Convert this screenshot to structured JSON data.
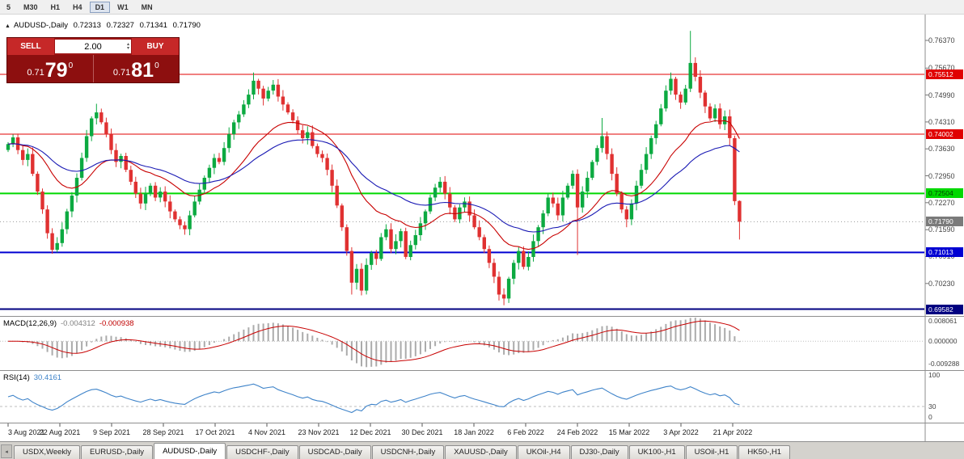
{
  "toolbar": {
    "timeframes": [
      "5",
      "M30",
      "H1",
      "H4",
      "D1",
      "W1",
      "MN"
    ],
    "active_timeframe": "D1"
  },
  "header": {
    "symbol": "AUDUSD-,Daily",
    "open": "0.72313",
    "high": "0.72327",
    "low": "0.71341",
    "close": "0.71790"
  },
  "trade_panel": {
    "sell_label": "SELL",
    "buy_label": "BUY",
    "volume": "2.00",
    "bid": {
      "base": "0.71",
      "big": "79",
      "sup": "0"
    },
    "ask": {
      "base": "0.71",
      "big": "81",
      "sup": "0"
    }
  },
  "indicators": {
    "macd": {
      "title": "MACD(12,26,9)",
      "main_value": "-0.004312",
      "signal_value": "-0.000938",
      "axis": [
        "0.008061",
        "0.000000",
        "-0.009288"
      ],
      "params": {
        "fast": 12,
        "slow": 26,
        "signal": 9
      }
    },
    "rsi": {
      "title": "RSI(14)",
      "value": "30.4161",
      "axis": [
        "100",
        "30",
        "0"
      ],
      "level": 30,
      "period": 14
    }
  },
  "price_axis": {
    "ticks": [
      "0.76370",
      "0.75670",
      "0.74990",
      "0.74310",
      "0.73630",
      "0.72950",
      "0.72270",
      "0.71590",
      "0.70910",
      "0.70230"
    ]
  },
  "date_axis": {
    "labels": [
      "3 Aug 2021",
      "22 Aug 2021",
      "9 Sep 2021",
      "28 Sep 2021",
      "17 Oct 2021",
      "4 Nov 2021",
      "23 Nov 2021",
      "12 Dec 2021",
      "30 Dec 2021",
      "18 Jan 2022",
      "6 Feb 2022",
      "24 Feb 2022",
      "15 Mar 2022",
      "3 Apr 2022",
      "21 Apr 2022"
    ],
    "start_label": "3 Aug 2021",
    "end_label": "21 Apr 2022"
  },
  "tabs": {
    "items": [
      "USDX,Weekly",
      "EURUSD-,Daily",
      "AUDUSD-,Daily",
      "USDCHF-,Daily",
      "USDCAD-,Daily",
      "USDCNH-,Daily",
      "XAUUSD-,Daily",
      "UKOil-,H4",
      "DJ30-,Daily",
      "UK100-,H1",
      "USOil-,H1",
      "HK50-,H1"
    ],
    "active": "AUDUSD-,Daily"
  },
  "colors": {
    "candle_up": "#0caa41",
    "candle_down": "#e03131",
    "ma_fast": "#c80000",
    "ma_slow": "#1a1ab4",
    "macd_hist": "#ababab",
    "macd_signal": "#c80000",
    "rsi_line": "#3e83c9",
    "level_red": "#e00000",
    "level_green": "#00d800",
    "level_blue": "#0000d2",
    "level_navy": "#000080",
    "bid_line": "#9a9a9a"
  },
  "chart_data": {
    "type": "candlestick",
    "symbol": "AUDUSD-",
    "period": "Daily",
    "current_bid": 0.7179,
    "current_ask": 0.7181,
    "levels": [
      {
        "value": 0.75512,
        "text": "0.75512",
        "color": "#e00000",
        "width": 1,
        "dash": "",
        "badge_bg": "#e00000",
        "badge_fg": "#ffffff"
      },
      {
        "value": 0.74002,
        "text": "0.74002",
        "color": "#e00000",
        "width": 1,
        "dash": "",
        "badge_bg": "#e00000",
        "badge_fg": "#ffffff"
      },
      {
        "value": 0.72504,
        "text": "0.72504",
        "color": "#00d800",
        "width": 2,
        "dash": "",
        "badge_bg": "#00d800",
        "badge_fg": "#003b00"
      },
      {
        "value": 0.71013,
        "text": "0.71013",
        "color": "#0000d2",
        "width": 2,
        "dash": "",
        "badge_bg": "#0000d2",
        "badge_fg": "#ffffff"
      },
      {
        "value": 0.69582,
        "text": "0.69582",
        "color": "#000080",
        "width": 2,
        "dash": "",
        "badge_bg": "#000080",
        "badge_fg": "#ffffff"
      },
      {
        "value": 0.7179,
        "text": "0.71790",
        "color": "#9a9a9a",
        "width": 1,
        "dash": "1,3",
        "badge_bg": "#7a7a7a",
        "badge_fg": "#ffffff"
      }
    ],
    "candles": {
      "first_open": 0.736,
      "closes": [
        0.7375,
        0.7392,
        0.736,
        0.7335,
        0.735,
        0.73,
        0.7255,
        0.721,
        0.715,
        0.7108,
        0.7125,
        0.716,
        0.7205,
        0.7245,
        0.729,
        0.734,
        0.7395,
        0.744,
        0.7455,
        0.743,
        0.74,
        0.736,
        0.733,
        0.7345,
        0.731,
        0.728,
        0.725,
        0.7225,
        0.725,
        0.727,
        0.724,
        0.7255,
        0.723,
        0.7205,
        0.7185,
        0.717,
        0.716,
        0.7195,
        0.723,
        0.726,
        0.729,
        0.7315,
        0.734,
        0.733,
        0.7365,
        0.74,
        0.743,
        0.745,
        0.7475,
        0.75,
        0.7535,
        0.7515,
        0.749,
        0.751,
        0.7525,
        0.7495,
        0.7475,
        0.7455,
        0.7435,
        0.741,
        0.739,
        0.7405,
        0.737,
        0.735,
        0.734,
        0.731,
        0.727,
        0.722,
        0.7165,
        0.7105,
        0.7025,
        0.706,
        0.7005,
        0.707,
        0.71,
        0.7085,
        0.714,
        0.716,
        0.711,
        0.713,
        0.7155,
        0.709,
        0.712,
        0.7145,
        0.7175,
        0.7205,
        0.724,
        0.7265,
        0.728,
        0.725,
        0.7215,
        0.7185,
        0.7215,
        0.723,
        0.7195,
        0.7165,
        0.714,
        0.711,
        0.7075,
        0.704,
        0.6995,
        0.6985,
        0.7035,
        0.7075,
        0.7105,
        0.7065,
        0.709,
        0.713,
        0.7165,
        0.72,
        0.724,
        0.7225,
        0.7195,
        0.724,
        0.727,
        0.73,
        0.7215,
        0.7255,
        0.729,
        0.733,
        0.7365,
        0.7395,
        0.735,
        0.73,
        0.725,
        0.721,
        0.7185,
        0.7225,
        0.727,
        0.731,
        0.735,
        0.739,
        0.7425,
        0.7465,
        0.751,
        0.754,
        0.75,
        0.748,
        0.7515,
        0.758,
        0.7545,
        0.7505,
        0.747,
        0.744,
        0.7465,
        0.7425,
        0.7445,
        0.739,
        0.7231,
        0.7179
      ],
      "overrides": {
        "9": {
          "l": 0.7098
        },
        "18": {
          "h": 0.7477
        },
        "36": {
          "l": 0.7146
        },
        "50": {
          "h": 0.7556
        },
        "70": {
          "l": 0.6995
        },
        "72": {
          "l": 0.6993
        },
        "100": {
          "l": 0.698
        },
        "101": {
          "l": 0.6968
        },
        "116": {
          "l": 0.7095
        },
        "121": {
          "h": 0.7441
        },
        "126": {
          "l": 0.7165
        },
        "139": {
          "h": 0.7661
        },
        "148": {
          "l": 0.7221
        },
        "149": {
          "o": 0.72313,
          "h": 0.72327,
          "l": 0.71341,
          "c": 0.7179
        }
      }
    },
    "moving_averages": [
      {
        "name": "ma-fast",
        "period": 20,
        "color": "#c80000"
      },
      {
        "name": "ma-slow",
        "period": 40,
        "color": "#1a1ab4"
      }
    ]
  }
}
